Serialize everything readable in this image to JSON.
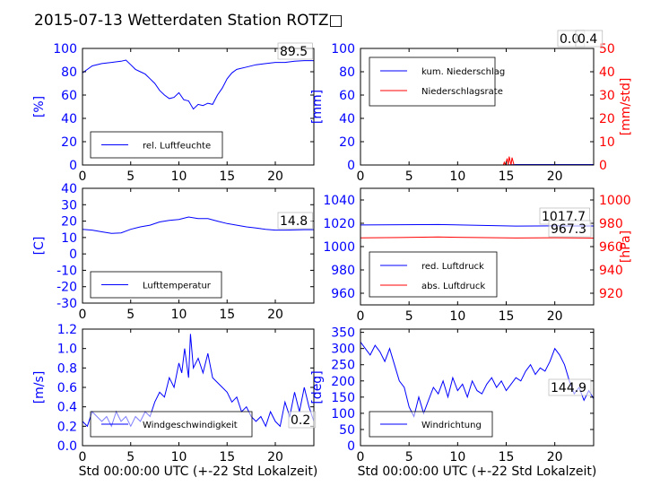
{
  "title": "2015-07-13 Wetterdaten Station ROTZ□",
  "colors": {
    "primary": "#0000ff",
    "secondary": "#ff0000",
    "secondary_light": "#8080ff"
  },
  "chart_data": [
    {
      "id": "humidity",
      "type": "line",
      "ylabel": "[%]",
      "xlabel": "",
      "xlim": [
        0,
        24
      ],
      "ylim": [
        0,
        100
      ],
      "xticks": [
        0,
        5,
        10,
        15,
        20
      ],
      "yticks": [
        0,
        20,
        40,
        60,
        80,
        100
      ],
      "legend_position": "lower-left",
      "value_label": "89.5",
      "series": [
        {
          "name": "rel. Luftfeuchte",
          "color": "#0000ff",
          "x": [
            0,
            0.5,
            1,
            2,
            3,
            4,
            4.5,
            5,
            5.5,
            6,
            6.5,
            7,
            7.5,
            8,
            8.5,
            9,
            9.5,
            10,
            10.5,
            11,
            11.5,
            12,
            12.5,
            13,
            13.5,
            14,
            14.5,
            15,
            15.5,
            16,
            17,
            18,
            19,
            20,
            21,
            22,
            23,
            24
          ],
          "y": [
            79,
            82,
            85,
            87,
            88,
            89,
            90,
            86,
            82,
            80,
            78,
            74,
            70,
            64,
            60,
            57,
            58,
            62,
            56,
            55,
            48,
            52,
            51,
            53,
            52,
            60,
            66,
            74,
            79,
            82,
            84,
            86,
            87,
            88,
            88,
            89,
            89.5,
            89.5
          ]
        }
      ]
    },
    {
      "id": "precipitation",
      "type": "line",
      "ylabel": "[mm]",
      "ylabel_right": "[mm/std]",
      "xlabel": "",
      "xlim": [
        0,
        24
      ],
      "ylim": [
        0,
        100
      ],
      "ylim_right": [
        0,
        50
      ],
      "xticks": [
        0,
        5,
        10,
        15,
        20
      ],
      "yticks": [
        0,
        20,
        40,
        60,
        80,
        100
      ],
      "yticks_right": [
        0,
        10,
        20,
        30,
        40,
        50
      ],
      "legend_position": "top-left",
      "value_label": "0.0",
      "value_label_2": "0.4",
      "series": [
        {
          "name": "kum. Niederschlag",
          "color": "#0000ff",
          "x": [
            0,
            15,
            16,
            20,
            24
          ],
          "y": [
            0,
            0,
            0.4,
            0.4,
            0.4
          ]
        },
        {
          "name": "Niederschlagsrate",
          "color": "#ff0000",
          "axis": "right",
          "x": [
            0,
            14.7,
            14.8,
            14.9,
            15.1,
            15.2,
            15.3,
            15.5,
            15.6,
            15.8,
            16,
            24
          ],
          "y": [
            0,
            0,
            1.2,
            0,
            2.8,
            0,
            3.6,
            0,
            3.2,
            0,
            0,
            0
          ]
        }
      ]
    },
    {
      "id": "temperature",
      "type": "line",
      "ylabel": "[C]",
      "xlabel": "",
      "xlim": [
        0,
        24
      ],
      "ylim": [
        -30,
        40
      ],
      "xticks": [
        0,
        5,
        10,
        15,
        20
      ],
      "yticks": [
        -30,
        -20,
        -10,
        0,
        10,
        20,
        30,
        40
      ],
      "legend_position": "lower-left",
      "value_label": "14.8",
      "series": [
        {
          "name": "Lufttemperatur",
          "color": "#0000ff",
          "x": [
            0,
            1,
            2,
            3,
            4,
            5,
            6,
            7,
            8,
            9,
            10,
            11,
            12,
            13,
            14,
            15,
            16,
            17,
            18,
            19,
            20,
            21,
            22,
            23,
            24
          ],
          "y": [
            15,
            14.5,
            13.5,
            12.5,
            12.8,
            15,
            16.5,
            17.5,
            19.5,
            20.5,
            21,
            22.5,
            21.5,
            21.5,
            20,
            18.5,
            17.5,
            16.5,
            15.8,
            15,
            14.5,
            14.5,
            14.6,
            14.8,
            14.8
          ]
        }
      ]
    },
    {
      "id": "pressure",
      "type": "line",
      "ylabel": "",
      "ylabel_right": "[hPa]",
      "xlabel": "",
      "xlim": [
        0,
        24
      ],
      "ylim": [
        950,
        1050
      ],
      "ylim_right": [
        910,
        1010
      ],
      "xticks": [
        0,
        5,
        10,
        15,
        20
      ],
      "yticks": [
        960,
        980,
        1000,
        1020,
        1040
      ],
      "yticks_right": [
        920,
        940,
        960,
        980,
        1000
      ],
      "legend_position": "lower-left",
      "value_label": "1017.7",
      "value_label_2": "967.3",
      "series": [
        {
          "name": "red. Luftdruck",
          "color": "#0000ff",
          "x": [
            0,
            4,
            8,
            12,
            16,
            20,
            24
          ],
          "y": [
            1018.5,
            1018.8,
            1018.9,
            1018.3,
            1017.6,
            1017.8,
            1017.7
          ]
        },
        {
          "name": "abs. Luftdruck",
          "color": "#ff0000",
          "axis": "right",
          "x": [
            0,
            4,
            8,
            12,
            16,
            20,
            24
          ],
          "y": [
            967.5,
            967.8,
            968.2,
            967.8,
            967.4,
            967.6,
            967.3
          ]
        }
      ]
    },
    {
      "id": "windspeed",
      "type": "line",
      "ylabel": "[m/s]",
      "xlabel": "Std 00:00:00 UTC (+-22 Std Lokalzeit)",
      "xlim": [
        0,
        24
      ],
      "ylim": [
        0,
        1.2
      ],
      "xticks": [
        0,
        5,
        10,
        15,
        20
      ],
      "yticks": [
        0.0,
        0.2,
        0.4,
        0.6,
        0.8,
        1.0,
        1.2
      ],
      "legend_position": "lower-left",
      "value_label": "0.2",
      "series": [
        {
          "name": "Windgeschwindigkeit",
          "color": "#0000ff",
          "x": [
            0,
            0.5,
            1,
            1.5,
            2,
            2.5,
            3,
            3.5,
            4,
            4.5,
            5,
            5.5,
            6,
            6.5,
            7,
            7.5,
            8,
            8.5,
            9,
            9.5,
            10,
            10.3,
            10.6,
            11,
            11.2,
            11.5,
            12,
            12.5,
            13,
            13.5,
            14,
            14.5,
            15,
            15.5,
            16,
            16.5,
            17,
            17.5,
            18,
            18.5,
            19,
            19.5,
            20,
            20.5,
            21,
            21.5,
            22,
            22.5,
            23,
            23.5,
            24
          ],
          "y": [
            0.25,
            0.2,
            0.35,
            0.3,
            0.25,
            0.3,
            0.2,
            0.35,
            0.25,
            0.3,
            0.2,
            0.3,
            0.25,
            0.35,
            0.3,
            0.45,
            0.55,
            0.5,
            0.7,
            0.6,
            0.85,
            0.75,
            1.0,
            0.7,
            1.15,
            0.8,
            0.9,
            0.75,
            0.95,
            0.7,
            0.65,
            0.6,
            0.55,
            0.45,
            0.5,
            0.35,
            0.4,
            0.3,
            0.25,
            0.3,
            0.2,
            0.35,
            0.25,
            0.2,
            0.45,
            0.3,
            0.55,
            0.35,
            0.6,
            0.4,
            0.25
          ]
        }
      ]
    },
    {
      "id": "winddirection",
      "type": "line",
      "ylabel": "[deg]",
      "xlabel": "Std 00:00:00 UTC (+-22 Std Lokalzeit)",
      "xlim": [
        0,
        24
      ],
      "ylim": [
        0,
        360
      ],
      "xticks": [
        0,
        5,
        10,
        15,
        20
      ],
      "yticks": [
        0,
        50,
        100,
        150,
        200,
        250,
        300,
        350
      ],
      "legend_position": "lower-left",
      "value_label": "144.9",
      "series": [
        {
          "name": "Windrichtung",
          "color": "#0000ff",
          "x": [
            0,
            0.5,
            1,
            1.5,
            2,
            2.5,
            3,
            3.5,
            4,
            4.5,
            5,
            5.5,
            6,
            6.5,
            7,
            7.5,
            8,
            8.5,
            9,
            9.5,
            10,
            10.5,
            11,
            11.5,
            12,
            12.5,
            13,
            13.5,
            14,
            14.5,
            15,
            15.5,
            16,
            16.5,
            17,
            17.5,
            18,
            18.5,
            19,
            19.5,
            20,
            20.5,
            21,
            21.5,
            22,
            22.5,
            23,
            23.5,
            24
          ],
          "y": [
            320,
            300,
            280,
            310,
            290,
            260,
            300,
            250,
            200,
            180,
            120,
            90,
            150,
            100,
            140,
            180,
            160,
            200,
            150,
            210,
            170,
            190,
            150,
            200,
            170,
            160,
            190,
            210,
            180,
            200,
            170,
            190,
            210,
            200,
            230,
            250,
            220,
            240,
            230,
            260,
            300,
            280,
            250,
            200,
            160,
            180,
            140,
            170,
            145
          ]
        }
      ]
    }
  ]
}
